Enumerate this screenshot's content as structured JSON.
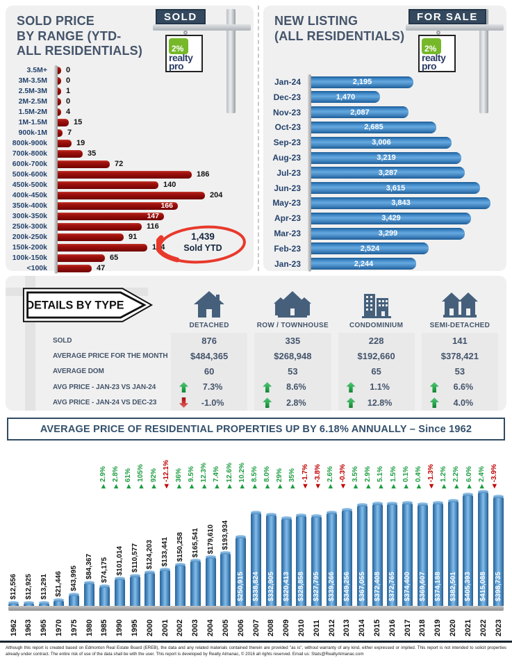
{
  "sold_panel": {
    "title_lines": [
      "SOLD PRICE",
      "BY RANGE (YTD-",
      "ALL RESIDENTIALS)"
    ],
    "sign_label": "SOLD",
    "annotation": {
      "value": "1,439",
      "label": "Sold YTD"
    }
  },
  "listing_panel": {
    "title_lines": [
      "NEW LISTING",
      "(ALL RESIDENTIALS)"
    ],
    "sign_label": "FOR SALE"
  },
  "logo": {
    "badge": "2%",
    "line1": "realty",
    "line2": "pro"
  },
  "details": {
    "badge_label": "DETAILS BY TYPE",
    "row_labels": [
      "SOLD",
      "AVERAGE PRICE FOR THE MONTH",
      "AVERAGE DOM",
      "AVG PRICE - JAN-23 VS JAN-24",
      "AVG PRICE - JAN-24 VS DEC-23"
    ],
    "columns": [
      {
        "label": "DETACHED",
        "icon": "detached-house-icon",
        "sold": "876",
        "avg_price": "$484,365",
        "avg_dom": "60",
        "yoy": {
          "dir": "up",
          "value": "7.3%"
        },
        "mom": {
          "dir": "down",
          "value": "-1.0%"
        }
      },
      {
        "label": "ROW / TOWNHOUSE",
        "icon": "townhouse-icon",
        "sold": "335",
        "avg_price": "$268,948",
        "avg_dom": "53",
        "yoy": {
          "dir": "up",
          "value": "8.6%"
        },
        "mom": {
          "dir": "up",
          "value": "2.8%"
        }
      },
      {
        "label": "CONDOMINIUM",
        "icon": "condominium-icon",
        "sold": "228",
        "avg_price": "$192,660",
        "avg_dom": "65",
        "yoy": {
          "dir": "up",
          "value": "1.1%"
        },
        "mom": {
          "dir": "up",
          "value": "12.8%"
        }
      },
      {
        "label": "SEMI-DETACHED",
        "icon": "semi-detached-house-icon",
        "sold": "141",
        "avg_price": "$378,421",
        "avg_dom": "53",
        "yoy": {
          "dir": "up",
          "value": "6.6%"
        },
        "mom": {
          "dir": "up",
          "value": "4.0%"
        }
      }
    ]
  },
  "banner": {
    "text": "AVERAGE PRICE OF RESIDENTIAL PROPERTIES UP BY 6.18% ANNUALLY – Since 1962"
  },
  "footer": {
    "text": "Although this report is created based on Edmonton Real Estate Board (EREB), the data and any related materials contained therein are provided \"as is\", without warranty of any kind, either expressed or implied.  This report is not intended to solicit properties already under contract.  The entire risk of use of the data shall be with the user.  This report is developed by Realty Almanac, © 2016 all rights reserved. Email us: Stats@RealtyAlmanac.com"
  },
  "colors": {
    "sold_bar": "#8C0B08",
    "listing_bar": "#2E75B6",
    "title": "#44546A",
    "positive": "#1E9E43",
    "negative": "#C00000",
    "sign_plate": "#34495E",
    "logo_green": "#76B82A"
  },
  "chart_data": [
    {
      "id": "sold_price_by_range",
      "type": "bar",
      "orientation": "horizontal",
      "title": "SOLD PRICE BY RANGE (YTD-ALL RESIDENTIALS)",
      "categories": [
        "3.5M+",
        "3M-3.5M",
        "2.5M-3M",
        "2M-2.5M",
        "1.5M-2M",
        "1M-1.5M",
        "900k-1M",
        "800k-900k",
        "700k-800k",
        "600k-700k",
        "500k-600k",
        "450k-500k",
        "400k-450k",
        "350k-400k",
        "300k-350k",
        "250k-300k",
        "200k-250k",
        "150k-200k",
        "100k-150k",
        "<100k"
      ],
      "values": [
        0,
        0,
        1,
        0,
        4,
        15,
        7,
        19,
        35,
        72,
        186,
        140,
        204,
        166,
        147,
        116,
        91,
        124,
        65,
        47
      ],
      "value_labels": [
        "0",
        "0",
        "1",
        "0",
        "4",
        "15",
        "7",
        "19",
        "35",
        "72",
        "186",
        "140",
        "204",
        "166",
        "147",
        "116",
        "91",
        "124",
        "65",
        "47"
      ],
      "label_inside": [
        false,
        false,
        false,
        false,
        false,
        false,
        false,
        false,
        false,
        false,
        false,
        false,
        false,
        true,
        true,
        false,
        false,
        false,
        false,
        false
      ],
      "total_annotation": "1,439 Sold YTD",
      "xlim": [
        0,
        210
      ],
      "grid": false,
      "legend": false
    },
    {
      "id": "new_listings_by_month",
      "type": "bar",
      "orientation": "horizontal",
      "title": "NEW LISTING (ALL RESIDENTIALS)",
      "categories": [
        "Jan-24",
        "Dec-23",
        "Nov-23",
        "Oct-23",
        "Sep-23",
        "Aug-23",
        "Jul-23",
        "Jun-23",
        "May-23",
        "Apr-23",
        "Mar-23",
        "Feb-23",
        "Jan-23"
      ],
      "values": [
        2195,
        1470,
        2087,
        2685,
        3006,
        3219,
        3287,
        3615,
        3843,
        3429,
        3299,
        2524,
        2244
      ],
      "value_labels": [
        "2,195",
        "1,470",
        "2,087",
        "2,685",
        "3,006",
        "3,219",
        "3,287",
        "3,615",
        "3,843",
        "3,429",
        "3,299",
        "2,524",
        "2,244"
      ],
      "xlim": [
        0,
        4000
      ],
      "grid": false,
      "legend": false
    },
    {
      "id": "average_price_history",
      "type": "bar",
      "orientation": "vertical",
      "title": "AVERAGE PRICE OF RESIDENTIAL PROPERTIES UP BY 6.18% ANNUALLY – Since 1962",
      "categories": [
        "1962",
        "1963",
        "1965",
        "1970",
        "1975",
        "1980",
        "1985",
        "1990",
        "1995",
        "2000",
        "2001",
        "2002",
        "2003",
        "2004",
        "2005",
        "2006",
        "2007",
        "2008",
        "2009",
        "2010",
        "2011",
        "2012",
        "2013",
        "2014",
        "2015",
        "2016",
        "2017",
        "2018",
        "2019",
        "2020",
        "2021",
        "2022",
        "2023"
      ],
      "values": [
        12556,
        12925,
        13291,
        21446,
        43995,
        84367,
        74175,
        101014,
        110577,
        124203,
        133441,
        150258,
        165541,
        179610,
        193934,
        250915,
        338824,
        332905,
        320413,
        328858,
        327795,
        339266,
        349256,
        367055,
        372408,
        372765,
        374400,
        369607,
        374188,
        382501,
        405393,
        415088,
        398735
      ],
      "value_labels": [
        "$12,556",
        "$12,925",
        "$13,291",
        "$21,446",
        "$43,995",
        "$84,367",
        "$74,175",
        "$101,014",
        "$110,577",
        "$124,203",
        "$133,441",
        "$150,258",
        "$165,541",
        "$179,610",
        "$193,934",
        "$250,915",
        "$338,824",
        "$332,905",
        "$320,413",
        "$328,858",
        "$327,795",
        "$339,266",
        "$349,256",
        "$367,055",
        "$372,408",
        "$372,765",
        "$374,400",
        "$369,607",
        "$374,188",
        "$382,501",
        "$405,393",
        "$415,088",
        "$398,735"
      ],
      "pct_change_labels": [
        "2.9%",
        "2.8%",
        "61%",
        "105%",
        "92%",
        "-12.1%",
        "36%",
        "9.5%",
        "12.3%",
        "7.4%",
        "12.6%",
        "10.2%",
        "8.5%",
        "8.0%",
        "29%",
        "35%",
        "-1.7%",
        "-3.8%",
        "2.6%",
        "-0.3%",
        "3.5%",
        "2.9%",
        "5.1%",
        "1.5%",
        "0.1%",
        "0.4%",
        "-1.3%",
        "1.2%",
        "2.2%",
        "6.0%",
        "2.4%",
        "-3.9%"
      ],
      "ylim": [
        0,
        420000
      ],
      "grid": false,
      "legend": false
    }
  ]
}
